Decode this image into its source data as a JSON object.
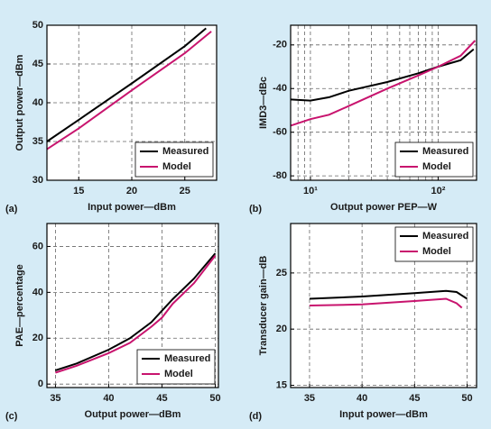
{
  "chart_data": [
    {
      "type": "line",
      "label": "(a)",
      "xlabel": "Input power—dBm",
      "ylabel": "Output power—dBm",
      "xlim": [
        12,
        28
      ],
      "xticks": [
        15,
        20,
        25
      ],
      "ylim": [
        30,
        50
      ],
      "yticks": [
        30,
        35,
        40,
        45,
        50
      ],
      "grid": true,
      "legend": "lower right",
      "series": [
        {
          "name": "Measured",
          "color": "#000000",
          "x": [
            12,
            15,
            20,
            25,
            27
          ],
          "values": [
            35,
            37.8,
            42.5,
            47.3,
            49.6
          ]
        },
        {
          "name": "Model",
          "color": "#c8146e",
          "x": [
            12,
            15,
            20,
            25,
            27.5
          ],
          "values": [
            34,
            36.7,
            41.6,
            46.4,
            49.2
          ]
        }
      ]
    },
    {
      "type": "line",
      "label": "(b)",
      "xlabel": "Output power PEP—W",
      "ylabel": "IMD3—dBc",
      "xscale": "log",
      "xlim": [
        7,
        200
      ],
      "xticks": [
        {
          "value": 10,
          "label": "10¹"
        },
        {
          "value": 100,
          "label": "10²"
        }
      ],
      "xminor_ticks": [
        8,
        9,
        20,
        30,
        40,
        50,
        60,
        70,
        80,
        90
      ],
      "ylim": [
        -82,
        -11
      ],
      "yticks": [
        -20,
        -40,
        -60,
        -80
      ],
      "grid": true,
      "legend": "lower right",
      "series": [
        {
          "name": "Measured",
          "color": "#000000",
          "x": [
            7,
            10,
            14,
            20,
            40,
            70,
            100,
            150,
            190
          ],
          "values": [
            -45,
            -45.5,
            -44,
            -41,
            -37,
            -33,
            -30,
            -27,
            -22
          ]
        },
        {
          "name": "Model",
          "color": "#c8146e",
          "x": [
            7,
            10,
            14,
            20,
            40,
            70,
            100,
            150,
            195
          ],
          "values": [
            -57,
            -54,
            -52,
            -48,
            -40,
            -34,
            -30,
            -25,
            -18
          ]
        }
      ]
    },
    {
      "type": "line",
      "label": "(c)",
      "xlabel": "Output power—dBm",
      "ylabel": "PAE—percentage",
      "xlim": [
        34.2,
        50.3
      ],
      "xticks": [
        35,
        40,
        45,
        50
      ],
      "ylim": [
        -1.5,
        70
      ],
      "yticks": [
        0,
        20,
        40,
        60
      ],
      "grid": true,
      "legend": "lower right",
      "series": [
        {
          "name": "Measured",
          "color": "#000000",
          "x": [
            35,
            37,
            40,
            42,
            44,
            45,
            46,
            48,
            50
          ],
          "values": [
            6,
            9,
            15,
            20,
            27,
            32,
            37,
            46,
            57
          ]
        },
        {
          "name": "Model",
          "color": "#c8146e",
          "x": [
            35,
            37,
            40,
            42,
            44,
            45,
            46,
            48,
            50
          ],
          "values": [
            5,
            8,
            13.5,
            18,
            25,
            29,
            35,
            44,
            56
          ]
        }
      ]
    },
    {
      "type": "line",
      "label": "(d)",
      "xlabel": "Input power—dBm",
      "ylabel": "Transducer gain—dB",
      "xlim": [
        33.2,
        50.9
      ],
      "xticks": [
        35,
        40,
        45,
        50
      ],
      "ylim": [
        14.8,
        29.4
      ],
      "yticks": [
        15,
        20,
        25
      ],
      "grid": true,
      "legend": "upper right",
      "series": [
        {
          "name": "Measured",
          "color": "#000000",
          "x": [
            35,
            40,
            45,
            48,
            49,
            49.5,
            50
          ],
          "values": [
            22.7,
            22.9,
            23.2,
            23.4,
            23.3,
            23,
            22.7
          ]
        },
        {
          "name": "Model",
          "color": "#c8146e",
          "x": [
            35,
            40,
            45,
            48,
            49,
            49.5
          ],
          "values": [
            22.1,
            22.2,
            22.5,
            22.7,
            22.3,
            21.9
          ]
        }
      ]
    }
  ]
}
